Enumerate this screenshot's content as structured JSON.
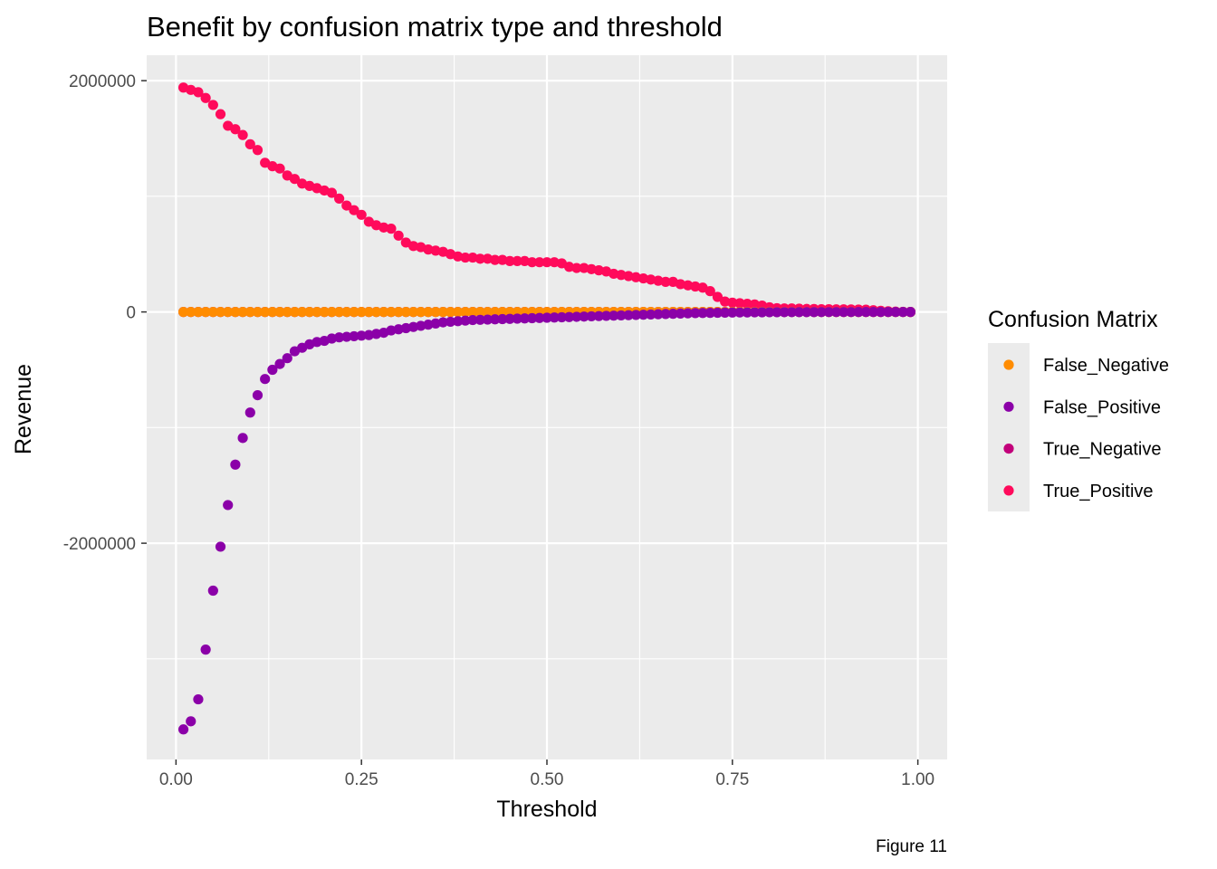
{
  "chart_data": {
    "type": "scatter",
    "title": "Benefit by confusion matrix type and threshold",
    "xlabel": "Threshold",
    "ylabel": "Revenue",
    "caption": "Figure 11",
    "xlim": [
      -0.0395,
      1.0395
    ],
    "ylim": [
      -3870000,
      2220000
    ],
    "x_ticks": [
      0.0,
      0.25,
      0.5,
      0.75,
      1.0
    ],
    "x_tick_labels": [
      "0.00",
      "0.25",
      "0.50",
      "0.75",
      "1.00"
    ],
    "y_ticks": [
      2000000,
      0,
      -2000000
    ],
    "y_tick_labels": [
      "2000000",
      "0",
      "-2000000"
    ],
    "grid": true,
    "legend": {
      "title": "Confusion Matrix",
      "position": "right"
    },
    "threshold_start": 0.01,
    "threshold_step": 0.01,
    "series": [
      {
        "name": "False_Negative",
        "color": "#FF8C00",
        "values": [
          0,
          0,
          0,
          0,
          0,
          0,
          0,
          0,
          0,
          0,
          0,
          0,
          0,
          0,
          0,
          0,
          0,
          0,
          0,
          0,
          0,
          0,
          0,
          0,
          0,
          0,
          0,
          0,
          0,
          0,
          0,
          0,
          0,
          0,
          0,
          0,
          0,
          0,
          0,
          0,
          0,
          0,
          0,
          0,
          0,
          0,
          0,
          0,
          0,
          0,
          0,
          0,
          0,
          0,
          0,
          0,
          0,
          0,
          0,
          0,
          0,
          0,
          0,
          0,
          0,
          0,
          0,
          0,
          0,
          0,
          0,
          0,
          0,
          0,
          0,
          0,
          0,
          0,
          0,
          0,
          0,
          0,
          0,
          0,
          0,
          0,
          0,
          0,
          0,
          0,
          0,
          0,
          0,
          0,
          0,
          0,
          0,
          0,
          0
        ]
      },
      {
        "name": "False_Positive",
        "color": "#8B00A8",
        "values": [
          -3610000,
          -3540000,
          -3350000,
          -2920000,
          -2410000,
          -2030000,
          -1670000,
          -1320000,
          -1090000,
          -870000,
          -720000,
          -580000,
          -500000,
          -450000,
          -400000,
          -340000,
          -310000,
          -280000,
          -260000,
          -250000,
          -230000,
          -220000,
          -215000,
          -210000,
          -205000,
          -200000,
          -190000,
          -180000,
          -160000,
          -150000,
          -140000,
          -130000,
          -120000,
          -110000,
          -100000,
          -90000,
          -85000,
          -80000,
          -75000,
          -70000,
          -68000,
          -66000,
          -64000,
          -62000,
          -60000,
          -58000,
          -56000,
          -54000,
          -52000,
          -50000,
          -48000,
          -46000,
          -44000,
          -42000,
          -40000,
          -38000,
          -36000,
          -34000,
          -32000,
          -30000,
          -28000,
          -26000,
          -24000,
          -22000,
          -20000,
          -18000,
          -16000,
          -14000,
          -12000,
          -10000,
          -9000,
          -8000,
          -7000,
          -6000,
          -5000,
          -4500,
          -4000,
          -3500,
          -3000,
          -2500,
          -2000,
          -1800,
          -1600,
          -1400,
          -1200,
          -1000,
          -900,
          -800,
          -700,
          -600,
          -500,
          -400,
          -300,
          -200,
          -150,
          -100,
          -60,
          -30,
          0
        ]
      },
      {
        "name": "True_Negative",
        "color": "#C2007A",
        "values": [
          0,
          0,
          0,
          0,
          0,
          0,
          0,
          0,
          0,
          0,
          0,
          0,
          0,
          0,
          0,
          0,
          0,
          0,
          0,
          0,
          0,
          0,
          0,
          0,
          0,
          0,
          0,
          0,
          0,
          0,
          0,
          0,
          0,
          0,
          0,
          0,
          0,
          0,
          0,
          0,
          0,
          0,
          0,
          0,
          0,
          0,
          0,
          0,
          0,
          0,
          0,
          0,
          0,
          0,
          0,
          0,
          0,
          0,
          0,
          0,
          0,
          0,
          0,
          0,
          0,
          0,
          0,
          0,
          0,
          0,
          0,
          0,
          0,
          0,
          0,
          0,
          0,
          0,
          0,
          0,
          0,
          0,
          0,
          0,
          0,
          0,
          0,
          0,
          0,
          0,
          0,
          0,
          0,
          0,
          0,
          0,
          0,
          0,
          0
        ]
      },
      {
        "name": "True_Positive",
        "color": "#FF0A5B",
        "values": [
          1940000,
          1920000,
          1900000,
          1850000,
          1790000,
          1710000,
          1610000,
          1580000,
          1530000,
          1450000,
          1400000,
          1290000,
          1260000,
          1240000,
          1180000,
          1150000,
          1110000,
          1090000,
          1070000,
          1050000,
          1030000,
          980000,
          920000,
          880000,
          840000,
          780000,
          750000,
          730000,
          720000,
          660000,
          600000,
          570000,
          560000,
          540000,
          530000,
          520000,
          500000,
          480000,
          470000,
          470000,
          460000,
          460000,
          450000,
          450000,
          440000,
          440000,
          440000,
          430000,
          430000,
          430000,
          430000,
          420000,
          390000,
          380000,
          380000,
          370000,
          360000,
          350000,
          330000,
          320000,
          310000,
          300000,
          290000,
          280000,
          270000,
          260000,
          260000,
          240000,
          230000,
          220000,
          210000,
          180000,
          130000,
          90000,
          80000,
          75000,
          70000,
          65000,
          55000,
          40000,
          32000,
          30000,
          30000,
          28000,
          26000,
          25000,
          24000,
          24000,
          23000,
          23000,
          22000,
          21000,
          20000,
          15000,
          10000,
          6000,
          3000,
          1000,
          0
        ]
      }
    ]
  }
}
